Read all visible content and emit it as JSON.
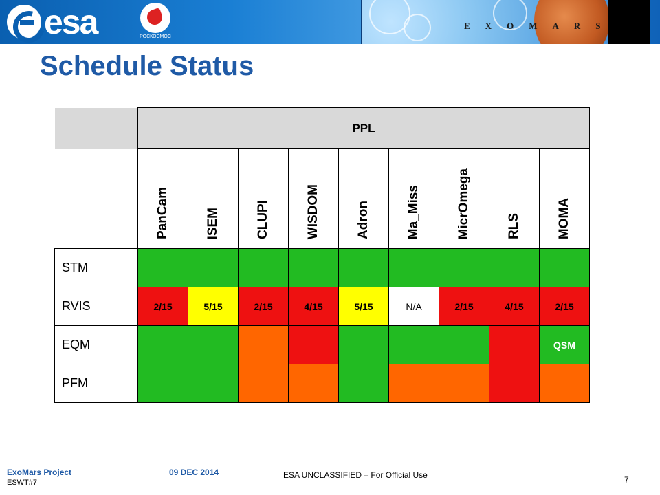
{
  "header": {
    "agency_logo_text": "esa",
    "partner_logo_text": "РОСКОСМОС",
    "mission_letters": [
      "E",
      "X",
      "O",
      "M",
      "A",
      "R",
      "S"
    ]
  },
  "title": "Schedule Status",
  "table": {
    "group_header": "PPL",
    "columns": [
      "PanCam",
      "ISEM",
      "CLUPI",
      "WISDOM",
      "Adron",
      "Ma_Miss",
      "MicrOmega",
      "RLS",
      "MOMA"
    ],
    "rows": [
      {
        "label": "STM",
        "cells": [
          {
            "text": "",
            "status": "green"
          },
          {
            "text": "",
            "status": "green"
          },
          {
            "text": "",
            "status": "green"
          },
          {
            "text": "",
            "status": "green"
          },
          {
            "text": "",
            "status": "green"
          },
          {
            "text": "",
            "status": "green"
          },
          {
            "text": "",
            "status": "green"
          },
          {
            "text": "",
            "status": "green"
          },
          {
            "text": "",
            "status": "green"
          }
        ]
      },
      {
        "label": "RVIS",
        "cells": [
          {
            "text": "2/15",
            "status": "red"
          },
          {
            "text": "5/15",
            "status": "yellow"
          },
          {
            "text": "2/15",
            "status": "red"
          },
          {
            "text": "4/15",
            "status": "red"
          },
          {
            "text": "5/15",
            "status": "yellow"
          },
          {
            "text": "N/A",
            "status": "white"
          },
          {
            "text": "2/15",
            "status": "red"
          },
          {
            "text": "4/15",
            "status": "red"
          },
          {
            "text": "2/15",
            "status": "red"
          }
        ]
      },
      {
        "label": "EQM",
        "cells": [
          {
            "text": "",
            "status": "green"
          },
          {
            "text": "",
            "status": "green"
          },
          {
            "text": "",
            "status": "orange"
          },
          {
            "text": "",
            "status": "red"
          },
          {
            "text": "",
            "status": "green"
          },
          {
            "text": "",
            "status": "green"
          },
          {
            "text": "",
            "status": "green"
          },
          {
            "text": "",
            "status": "red"
          },
          {
            "text": "QSM",
            "status": "green"
          }
        ]
      },
      {
        "label": "PFM",
        "cells": [
          {
            "text": "",
            "status": "green"
          },
          {
            "text": "",
            "status": "green"
          },
          {
            "text": "",
            "status": "orange"
          },
          {
            "text": "",
            "status": "orange"
          },
          {
            "text": "",
            "status": "green"
          },
          {
            "text": "",
            "status": "orange"
          },
          {
            "text": "",
            "status": "orange"
          },
          {
            "text": "",
            "status": "red"
          },
          {
            "text": "",
            "status": "orange"
          }
        ]
      }
    ],
    "status_colors": {
      "green": "#22bb22",
      "yellow": "#ffff00",
      "red": "#ee1111",
      "orange": "#ff6600",
      "white": "#ffffff"
    }
  },
  "footer": {
    "project": "ExoMars Project",
    "meeting": "ESWT#7",
    "date": "09 DEC 2014",
    "classification": "ESA UNCLASSIFIED – For Official Use",
    "page_number": "7"
  }
}
